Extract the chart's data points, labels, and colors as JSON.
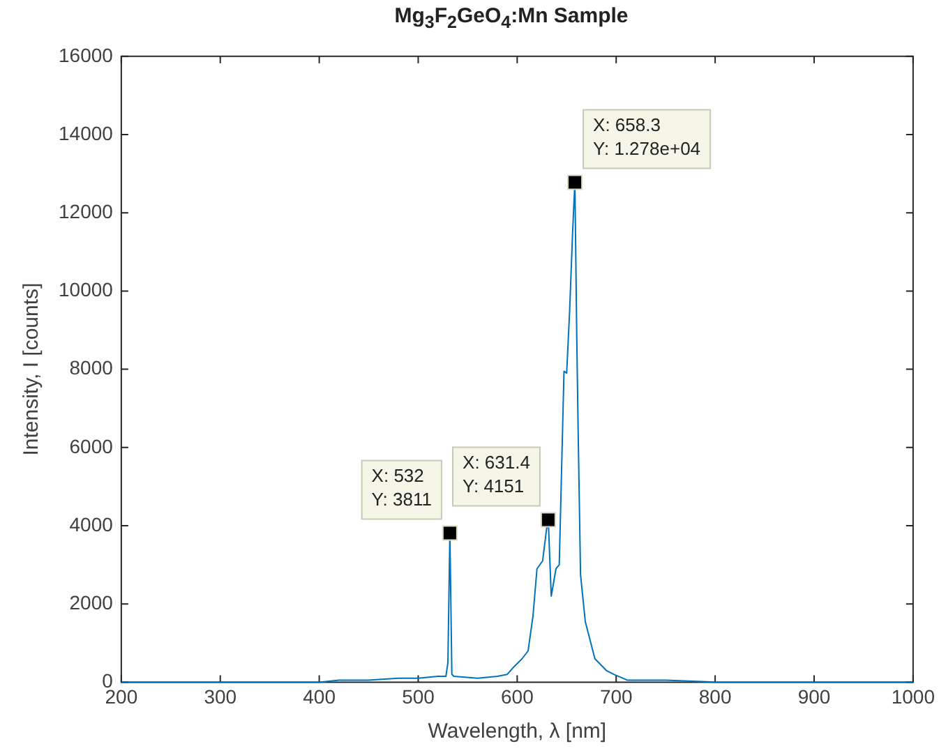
{
  "chart_data": {
    "type": "line",
    "title": "Mg$_{3}$F$_{2}$GeO$_{4}$:Mn Sample",
    "xlabel": "Wavelength, λ [nm]",
    "ylabel": "Intensity, I [counts]",
    "xlim": [
      200,
      1000
    ],
    "xticks": [
      200,
      300,
      400,
      500,
      600,
      700,
      800,
      900,
      1000
    ],
    "ylim": [
      0,
      16000
    ],
    "yticks": [
      0,
      2000,
      4000,
      6000,
      8000,
      10000,
      12000,
      14000,
      16000
    ],
    "grid": false,
    "legend": false,
    "marker": "none",
    "line_style": "solid",
    "series": [
      {
        "color": "#0072bd",
        "x": [
          200,
          250,
          300,
          350,
          400,
          420,
          450,
          480,
          500,
          520,
          528,
          530,
          532,
          534,
          536,
          560,
          580,
          590,
          597,
          605,
          611,
          616,
          620,
          625.7,
          629.6,
          631.4,
          634.4,
          639.2,
          642.5,
          647.3,
          650,
          653,
          656,
          658.3,
          660.2,
          661.6,
          664,
          668.8,
          678.5,
          690,
          697.5,
          711.5,
          750,
          800,
          900,
          1000
        ],
        "values": [
          0,
          0,
          0,
          0,
          0,
          50,
          50,
          100,
          100,
          150,
          150,
          500,
          3811,
          200,
          150,
          100,
          150,
          200,
          400,
          600,
          800,
          1700,
          2900,
          3100,
          3900,
          4151,
          2200,
          2900,
          3000,
          7950,
          7900,
          9500,
          11500,
          12780,
          8800,
          6400,
          2750,
          1550,
          600,
          300,
          200,
          50,
          50,
          0,
          0,
          0
        ]
      }
    ],
    "annotations": [
      {
        "text": "X: 532\nY: 3811",
        "x": 532,
        "y": 3811
      },
      {
        "text": "X: 631.4\nY: 4151",
        "x": 631.4,
        "y": 4151
      },
      {
        "text": "X: 658.3\nY: 1.278e+04",
        "x": 658.3,
        "y": 12780
      }
    ]
  }
}
